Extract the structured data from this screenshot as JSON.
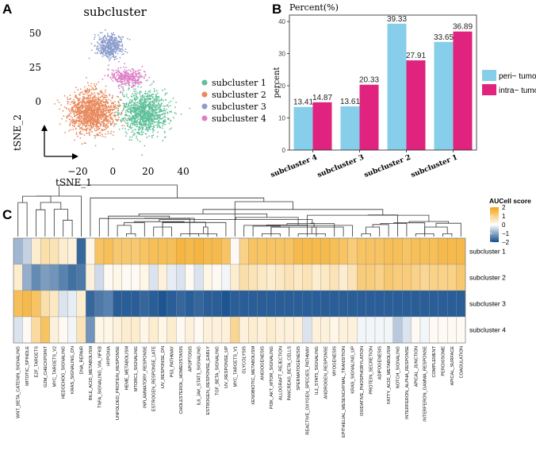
{
  "panel_labels": [
    "A",
    "B",
    "C"
  ],
  "colors": {
    "subcluster_1": "#5fc09a",
    "subcluster_2": "#e88a5c",
    "subcluster_3": "#8a9ccc",
    "subcluster_4": "#dd7fc6",
    "peri_tumor": "#87ceeb",
    "intra_tumor": "#e0237e",
    "heat_high": "#f2a30f",
    "heat_mid": "#ffffff",
    "heat_low": "#114c8c"
  },
  "chart_data": [
    {
      "type": "scatter",
      "title": "subcluster",
      "xlabel": "tSNE_1",
      "ylabel": "tSNE_2",
      "x_ticks": [
        "−20",
        "0",
        "20",
        "40"
      ],
      "x_tick_values": [
        -20,
        0,
        20,
        40
      ],
      "y_ticks": [
        "0",
        "25",
        "50"
      ],
      "y_tick_values": [
        0,
        25,
        50
      ],
      "xlim": [
        -38,
        44
      ],
      "ylim": [
        -42,
        57
      ],
      "legend_position": "right",
      "legend": [
        "subcluster 1",
        "subcluster 2",
        "subcluster 3",
        "subcluster 4"
      ],
      "clusters": [
        {
          "name": "subcluster 1",
          "center": [
            18,
            -8
          ],
          "spread": [
            12,
            14
          ],
          "n": 1100
        },
        {
          "name": "subcluster 2",
          "center": [
            -12,
            -8
          ],
          "spread": [
            12,
            14
          ],
          "n": 1300
        },
        {
          "name": "subcluster 3",
          "center": [
            -2,
            40
          ],
          "spread": [
            7,
            8
          ],
          "n": 420
        },
        {
          "name": "subcluster 4",
          "center": [
            8,
            18
          ],
          "spread": [
            8,
            6
          ],
          "n": 320
        }
      ]
    },
    {
      "type": "bar",
      "ytitle": "Percent(%)",
      "ylabel": "percent",
      "ylim": [
        0,
        42
      ],
      "y_ticks": [
        0,
        10,
        20,
        30,
        40
      ],
      "categories": [
        "subcluster 4",
        "subcluster 3",
        "subcluster 2",
        "subcluster 1"
      ],
      "series": [
        {
          "name": "peri− tumor",
          "values": [
            13.41,
            13.61,
            39.33,
            33.65
          ],
          "labels": [
            "13.41",
            "13.61",
            "39.33",
            "33.65"
          ]
        },
        {
          "name": "intra− tumor",
          "values": [
            14.87,
            20.33,
            27.91,
            36.89
          ],
          "labels": [
            "14.87",
            "20.33",
            "27.91",
            "36.89"
          ]
        }
      ]
    },
    {
      "type": "heatmap",
      "legend_title": "AUCell score",
      "legend_ticks": [
        "2",
        "1",
        "0",
        "−1",
        "−2"
      ],
      "legend_tick_values": [
        2,
        1,
        0,
        -1,
        -2
      ],
      "rows": [
        "subcluster 1",
        "subcluster 2",
        "subcluster 3",
        "subcluster 4"
      ],
      "columns": [
        "WNT_BETA_CATENIN_SIGNALING",
        "MITOTIC_SPINDLE",
        "E2F_TARGETS",
        "G2M_CHECKPOINT",
        "MYC_TARGETS_V2",
        "HEDGEHOG_SIGNALING",
        "KRAS_SIGNALING_DN",
        "DNA_REPAIR",
        "BILE_ACID_METABOLISM",
        "TNFA_SIGNALING_VIA_NFKB",
        "HYPOXIA",
        "UNFOLDED_PROTEIN_RESPONSE",
        "HEME_METABOLISM",
        "MTORC1_SIGNALING",
        "INFLAMMATORY_RESPONSE",
        "ESTROGEN_RESPONSE_LATE",
        "UV_RESPONSE_DN",
        "P53_PATHWAY",
        "CHOLESTEROL_HOMEOSTASIS",
        "APOPTOSIS",
        "IL6_JAK_STAT3_SIGNALING",
        "ESTROGEN_RESPONSE_EARLY",
        "TGF_BETA_SIGNALING",
        "UV_RESPONSE_UP",
        "MYC_TARGETS_V1",
        "GLYCOLYSIS",
        "XENOBIOTIC_METABOLISM",
        "ANGIOGENESIS",
        "PI3K_AKT_MTOR_SIGNALING",
        "ALLOGRAFT_REJECTION",
        "PANCREAS_BETA_CELLS",
        "SPERMATOGENESIS",
        "REACTIVE_OXYGEN_SPECIES_PATHWAY",
        "IL2_STAT5_SIGNALING",
        "ANDROGEN_RESPONSE",
        "MYOGENESIS",
        "EPITHELIAL_MESENCHYMAL_TRANSITION",
        "KRAS_SIGNALING_UP",
        "OXIDATIVE_PHOSPHORYLATION",
        "PROTEIN_SECRETION",
        "ADIPOGENESIS",
        "FATTY_ACID_METABOLISM",
        "NOTCH_SIGNALING",
        "INTERFERON_ALPHA_RESPONSE",
        "APICAL_JUNCTION",
        "INTERFERON_GAMMA_RESPONSE",
        "COMPLEMENT",
        "PEROXISOME",
        "APICAL_SURFACE",
        "COAGULATION"
      ],
      "values": [
        [
          -0.8,
          -0.5,
          0.4,
          0.7,
          0.6,
          0.4,
          0.3,
          -1.7,
          0.2,
          1.3,
          1.4,
          1.2,
          1.2,
          1.2,
          1.3,
          1.4,
          1.4,
          1.4,
          1.6,
          1.5,
          1.6,
          1.5,
          1.5,
          1.3,
          0.1,
          1.0,
          1.3,
          1.3,
          1.3,
          1.3,
          1.3,
          1.5,
          1.5,
          1.5,
          1.5,
          1.4,
          1.3,
          1.1,
          1.3,
          1.3,
          1.3,
          1.4,
          1.4,
          1.3,
          1.4,
          1.4,
          1.4,
          1.5,
          1.5,
          1.5
        ],
        [
          0.4,
          -0.9,
          -1.3,
          -1.1,
          -1.2,
          -1.4,
          -1.6,
          -1.5,
          0.3,
          -0.4,
          0.1,
          0.2,
          0.1,
          0.1,
          0.2,
          -0.3,
          0.3,
          -0.2,
          -0.3,
          0.1,
          -0.3,
          0.2,
          0.1,
          -0.1,
          0.4,
          0.7,
          0.6,
          0.5,
          0.4,
          0.5,
          0.6,
          0.5,
          0.6,
          0.4,
          0.5,
          0.6,
          0.4,
          0.6,
          1.1,
          1.1,
          1.0,
          1.2,
          1.1,
          1.1,
          1.0,
          0.9,
          1.0,
          1.0,
          1.0,
          1.2
        ],
        [
          1.4,
          1.5,
          1.3,
          0.7,
          0.5,
          -0.3,
          -0.2,
          0.4,
          -1.7,
          -1.5,
          -1.4,
          -1.8,
          -1.8,
          -1.8,
          -1.7,
          -1.8,
          -1.9,
          -1.8,
          -1.7,
          -1.8,
          -1.7,
          -1.8,
          -1.8,
          -1.9,
          -1.8,
          -1.8,
          -1.8,
          -1.8,
          -1.8,
          -1.8,
          -1.8,
          -1.8,
          -1.8,
          -1.8,
          -1.8,
          -1.8,
          -1.8,
          -1.8,
          -1.8,
          -1.8,
          -1.8,
          -1.8,
          -1.8,
          -1.8,
          -1.8,
          -1.8,
          -1.8,
          -1.8,
          -1.8,
          -1.8
        ],
        [
          -0.3,
          0.1,
          0.8,
          1.3,
          0.3,
          0.1,
          -0.1,
          0.6,
          -1.2,
          0.2,
          0.2,
          0.3,
          0.4,
          0.4,
          0.2,
          0.4,
          0.2,
          0.4,
          0.1,
          0.3,
          0.1,
          0.3,
          0.3,
          0.3,
          0.9,
          0.3,
          0.4,
          0.3,
          0.4,
          0.3,
          0.3,
          0.3,
          -0.3,
          0.3,
          0.3,
          0.2,
          0.3,
          0.3,
          -0.1,
          -0.1,
          -0.1,
          -0.1,
          -0.6,
          -0.3,
          0.1,
          -0.1,
          0.1,
          0.1,
          0.1,
          0.1
        ]
      ]
    }
  ]
}
